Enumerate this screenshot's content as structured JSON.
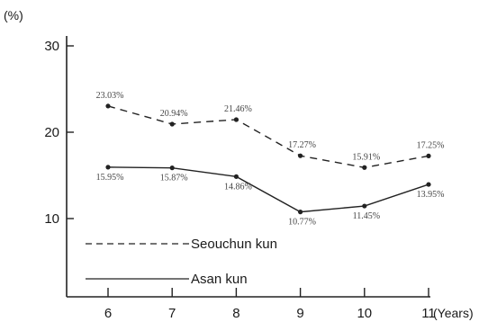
{
  "chart_data": {
    "type": "line",
    "x": [
      6,
      7,
      8,
      9,
      10,
      11
    ],
    "xlabel": "(Years)",
    "ylabel": "(%)",
    "ylim": [
      5,
      31
    ],
    "yticks": [
      10,
      20,
      30
    ],
    "series": [
      {
        "name": "Seouchun kun",
        "style": "dashed",
        "values": [
          23.03,
          20.94,
          21.46,
          17.27,
          15.91,
          17.25
        ],
        "labels": [
          "23.03%",
          "20.94%",
          "21.46%",
          "17.27%",
          "15.91%",
          "17.25%"
        ]
      },
      {
        "name": "Asan kun",
        "style": "solid",
        "values": [
          15.95,
          15.87,
          14.86,
          10.77,
          11.45,
          13.95
        ],
        "labels": [
          "15.95%",
          "15.87%",
          "14.86%",
          "10.77%",
          "11.45%",
          "13.95%"
        ]
      }
    ],
    "grid": false,
    "legend_position": "bottom-left",
    "colors": {
      "line": "#222222",
      "axis": "#222222"
    }
  }
}
